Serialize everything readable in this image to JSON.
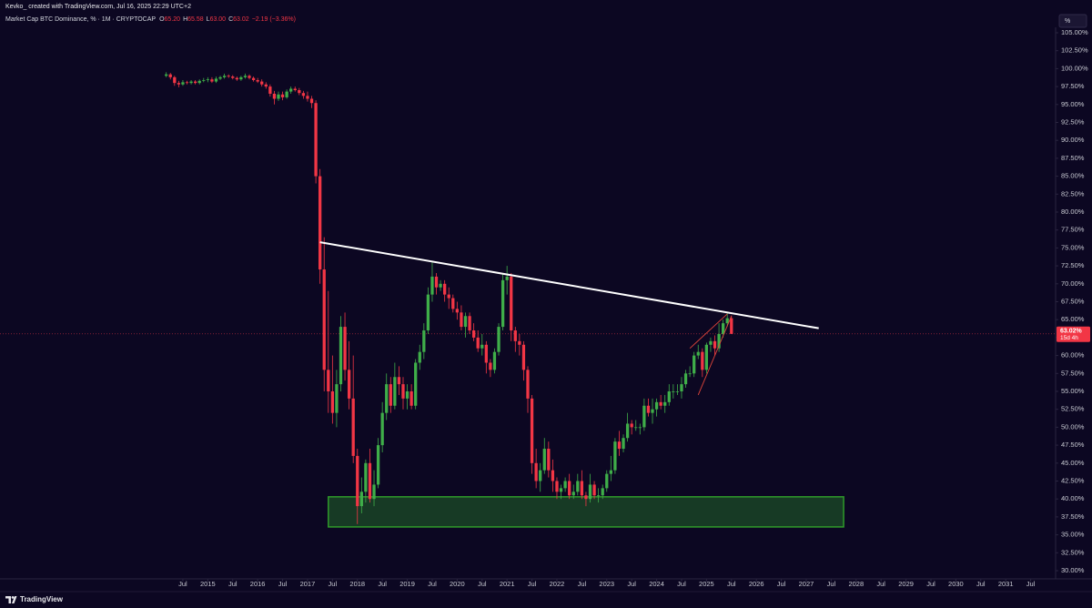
{
  "header": "Kevko_ created with TradingView.com, Jul 16, 2025 22:29 UTC+2",
  "branding": "TradingView",
  "scale_button": "%",
  "chart_data": {
    "type": "candlestick",
    "title": "Market Cap BTC Dominance, % · 1M · CRYPTOCAP",
    "legend_items": [
      {
        "key": "O",
        "text": "65.20"
      },
      {
        "key": "H",
        "text": "65.58"
      },
      {
        "key": "L",
        "text": "63.00"
      },
      {
        "key": "C",
        "text": "63.02"
      }
    ],
    "change": "−2.19 (−3.36%)",
    "up_color": "#3fae49",
    "down_color": "#f23645",
    "grid": false,
    "x": [
      "2014-03",
      "2014-04",
      "2014-05",
      "2014-06",
      "2014-07",
      "2014-08",
      "2014-09",
      "2014-10",
      "2014-11",
      "2014-12",
      "2015-01",
      "2015-02",
      "2015-03",
      "2015-04",
      "2015-05",
      "2015-06",
      "2015-07",
      "2015-08",
      "2015-09",
      "2015-10",
      "2015-11",
      "2015-12",
      "2016-01",
      "2016-02",
      "2016-03",
      "2016-04",
      "2016-05",
      "2016-06",
      "2016-07",
      "2016-08",
      "2016-09",
      "2016-10",
      "2016-11",
      "2016-12",
      "2017-01",
      "2017-02",
      "2017-03",
      "2017-04",
      "2017-05",
      "2017-06",
      "2017-07",
      "2017-08",
      "2017-09",
      "2017-10",
      "2017-11",
      "2017-12",
      "2018-01",
      "2018-02",
      "2018-03",
      "2018-04",
      "2018-05",
      "2018-06",
      "2018-07",
      "2018-08",
      "2018-09",
      "2018-10",
      "2018-11",
      "2018-12",
      "2019-01",
      "2019-02",
      "2019-03",
      "2019-04",
      "2019-05",
      "2019-06",
      "2019-07",
      "2019-08",
      "2019-09",
      "2019-10",
      "2019-11",
      "2019-12",
      "2020-01",
      "2020-02",
      "2020-03",
      "2020-04",
      "2020-05",
      "2020-06",
      "2020-07",
      "2020-08",
      "2020-09",
      "2020-10",
      "2020-11",
      "2020-12",
      "2021-01",
      "2021-02",
      "2021-03",
      "2021-04",
      "2021-05",
      "2021-06",
      "2021-07",
      "2021-08",
      "2021-09",
      "2021-10",
      "2021-11",
      "2021-12",
      "2022-01",
      "2022-02",
      "2022-03",
      "2022-04",
      "2022-05",
      "2022-06",
      "2022-07",
      "2022-08",
      "2022-09",
      "2022-10",
      "2022-11",
      "2022-12",
      "2023-01",
      "2023-02",
      "2023-03",
      "2023-04",
      "2023-05",
      "2023-06",
      "2023-07",
      "2023-08",
      "2023-09",
      "2023-10",
      "2023-11",
      "2023-12",
      "2024-01",
      "2024-02",
      "2024-03",
      "2024-04",
      "2024-05",
      "2024-06",
      "2024-07",
      "2024-08",
      "2024-09",
      "2024-10",
      "2024-11",
      "2024-12",
      "2025-01",
      "2025-02",
      "2025-03",
      "2025-04",
      "2025-05",
      "2025-06",
      "2025-07"
    ],
    "open": [
      99.0,
      99.2,
      98.8,
      98.0,
      97.8,
      98.1,
      98.0,
      98.2,
      98.0,
      98.3,
      98.4,
      98.5,
      98.2,
      98.6,
      98.8,
      99.0,
      98.9,
      98.7,
      98.5,
      98.8,
      99.0,
      98.7,
      98.4,
      98.2,
      97.8,
      97.5,
      96.5,
      95.8,
      96.4,
      96.0,
      96.8,
      97.2,
      97.0,
      96.6,
      96.2,
      95.8,
      95.2,
      85.0,
      72.0,
      58.0,
      55.0,
      52.0,
      56.0,
      64.0,
      58.0,
      54.0,
      46.0,
      39.0,
      41.0,
      45.0,
      40.0,
      42.0,
      47.5,
      52.0,
      56.0,
      53.0,
      57.0,
      56.0,
      54.0,
      55.0,
      53.0,
      59.0,
      60.5,
      63.5,
      68.5,
      71.0,
      69.5,
      70.0,
      68.5,
      68.0,
      66.5,
      66.0,
      64.0,
      65.5,
      63.5,
      62.5,
      61.0,
      61.5,
      59.0,
      58.0,
      60.5,
      64.0,
      70.5,
      71.0,
      63.5,
      62.0,
      61.5,
      58.0,
      54.0,
      45.0,
      42.5,
      44.0,
      47.0,
      44.0,
      42.5,
      41.0,
      41.5,
      42.5,
      40.5,
      41.0,
      42.5,
      40.5,
      40.0,
      42.0,
      40.5,
      40.5,
      41.5,
      43.5,
      44.0,
      48.0,
      47.0,
      48.5,
      50.5,
      50.0,
      50.0,
      50.0,
      53.0,
      52.0,
      52.5,
      53.5,
      53.0,
      53.5,
      55.0,
      55.0,
      55.0,
      56.0,
      57.5,
      57.5,
      60.0,
      60.5,
      58.0,
      61.5,
      62.0,
      61.0,
      63.0,
      64.5,
      65.2
    ],
    "high": [
      99.5,
      99.4,
      99.0,
      98.3,
      98.4,
      98.3,
      98.4,
      98.4,
      98.5,
      98.7,
      98.8,
      98.8,
      98.9,
      99.0,
      99.3,
      99.2,
      99.1,
      98.9,
      99.0,
      99.3,
      99.2,
      98.9,
      98.7,
      98.5,
      98.1,
      97.8,
      96.9,
      96.8,
      96.8,
      97.1,
      97.5,
      97.5,
      97.3,
      96.9,
      96.8,
      96.2,
      95.6,
      86.0,
      76.5,
      69.0,
      60.0,
      58.0,
      65.5,
      66.0,
      62.0,
      60.0,
      47.0,
      43.0,
      45.5,
      47.0,
      44.0,
      48.5,
      53.5,
      57.5,
      57.0,
      59.0,
      58.5,
      57.0,
      56.0,
      56.0,
      59.5,
      61.5,
      64.5,
      69.5,
      73.0,
      71.5,
      70.5,
      70.5,
      69.5,
      68.5,
      67.5,
      67.0,
      66.0,
      66.0,
      64.5,
      63.5,
      63.0,
      62.0,
      59.5,
      61.0,
      64.5,
      71.5,
      72.5,
      71.5,
      64.0,
      63.0,
      62.0,
      58.5,
      54.5,
      47.0,
      45.0,
      48.5,
      48.0,
      45.5,
      43.0,
      42.0,
      43.0,
      43.5,
      42.0,
      43.5,
      44.0,
      41.0,
      43.5,
      42.5,
      41.5,
      42.0,
      44.0,
      46.0,
      48.5,
      49.5,
      49.0,
      52.0,
      51.0,
      51.0,
      50.5,
      54.0,
      54.0,
      54.0,
      54.0,
      54.5,
      54.5,
      56.0,
      56.0,
      56.0,
      57.0,
      58.0,
      58.5,
      60.5,
      61.5,
      61.0,
      61.8,
      62.5,
      62.8,
      64.5,
      65.0,
      66.0,
      65.58
    ],
    "low": [
      98.8,
      98.5,
      97.6,
      97.4,
      97.6,
      97.8,
      97.8,
      97.8,
      97.8,
      98.1,
      98.1,
      98.0,
      98.0,
      98.4,
      98.6,
      98.7,
      98.5,
      98.3,
      98.3,
      98.6,
      98.5,
      98.2,
      98.0,
      97.5,
      97.2,
      96.1,
      95.0,
      95.5,
      95.6,
      95.8,
      96.5,
      96.8,
      96.3,
      95.8,
      95.4,
      94.5,
      84.0,
      70.0,
      55.0,
      52.0,
      50.5,
      50.0,
      55.0,
      56.5,
      52.5,
      45.0,
      36.5,
      38.0,
      39.5,
      39.5,
      39.0,
      41.5,
      46.5,
      51.0,
      52.0,
      52.5,
      54.5,
      52.5,
      52.5,
      52.5,
      52.5,
      58.0,
      59.5,
      63.0,
      67.5,
      68.5,
      69.0,
      67.5,
      66.5,
      66.0,
      65.0,
      63.5,
      62.5,
      63.0,
      62.0,
      60.5,
      60.0,
      57.5,
      57.0,
      57.5,
      60.0,
      63.5,
      68.5,
      62.0,
      60.5,
      60.0,
      56.5,
      52.0,
      43.5,
      41.5,
      41.0,
      43.5,
      43.0,
      41.0,
      40.0,
      40.0,
      41.0,
      40.0,
      40.0,
      40.5,
      40.0,
      39.0,
      39.5,
      40.0,
      39.5,
      40.0,
      41.0,
      42.5,
      43.5,
      46.0,
      46.5,
      48.0,
      49.0,
      49.5,
      49.0,
      49.5,
      51.5,
      50.5,
      51.5,
      52.5,
      52.0,
      53.0,
      54.0,
      54.5,
      54.0,
      55.5,
      57.0,
      57.0,
      59.5,
      57.0,
      57.5,
      60.5,
      60.0,
      60.5,
      62.5,
      64.0,
      63.0
    ],
    "close": [
      99.2,
      98.8,
      98.0,
      97.8,
      98.1,
      98.0,
      98.2,
      98.0,
      98.3,
      98.4,
      98.5,
      98.2,
      98.6,
      98.8,
      99.0,
      98.9,
      98.7,
      98.5,
      98.8,
      99.0,
      98.7,
      98.4,
      98.2,
      97.8,
      97.5,
      96.5,
      95.8,
      96.4,
      96.0,
      96.8,
      97.2,
      97.0,
      96.6,
      96.2,
      95.8,
      95.2,
      85.0,
      72.0,
      58.0,
      55.0,
      52.0,
      56.0,
      64.0,
      58.0,
      54.0,
      46.0,
      39.0,
      41.0,
      45.0,
      40.0,
      42.0,
      47.5,
      52.0,
      56.0,
      53.0,
      57.0,
      56.0,
      54.0,
      55.0,
      53.0,
      59.0,
      60.5,
      63.5,
      68.5,
      71.0,
      69.5,
      70.0,
      68.5,
      68.0,
      66.5,
      66.0,
      64.0,
      65.5,
      63.5,
      62.5,
      61.0,
      61.5,
      59.0,
      58.0,
      60.5,
      64.0,
      70.5,
      71.0,
      63.5,
      62.0,
      61.5,
      58.0,
      54.0,
      45.0,
      42.5,
      44.0,
      47.0,
      44.0,
      42.5,
      41.0,
      41.5,
      42.5,
      40.5,
      41.0,
      42.5,
      40.5,
      40.0,
      42.0,
      40.5,
      40.5,
      41.5,
      43.5,
      44.0,
      48.0,
      47.0,
      48.5,
      50.5,
      50.0,
      50.0,
      50.0,
      53.0,
      52.0,
      52.5,
      53.5,
      53.0,
      53.5,
      55.0,
      55.0,
      55.0,
      56.0,
      57.5,
      57.5,
      60.0,
      60.5,
      58.0,
      61.5,
      62.0,
      61.0,
      63.0,
      64.5,
      65.2,
      63.02
    ],
    "xlim": [
      "2010-11",
      "2032-01"
    ],
    "xticks": [
      {
        "value": "2014-07",
        "label": "Jul"
      },
      {
        "value": "2015-01",
        "label": "2015"
      },
      {
        "value": "2015-07",
        "label": "Jul"
      },
      {
        "value": "2016-01",
        "label": "2016"
      },
      {
        "value": "2016-07",
        "label": "Jul"
      },
      {
        "value": "2017-01",
        "label": "2017"
      },
      {
        "value": "2017-07",
        "label": "Jul"
      },
      {
        "value": "2018-01",
        "label": "2018"
      },
      {
        "value": "2018-07",
        "label": "Jul"
      },
      {
        "value": "2019-01",
        "label": "2019"
      },
      {
        "value": "2019-07",
        "label": "Jul"
      },
      {
        "value": "2020-01",
        "label": "2020"
      },
      {
        "value": "2020-07",
        "label": "Jul"
      },
      {
        "value": "2021-01",
        "label": "2021"
      },
      {
        "value": "2021-07",
        "label": "Jul"
      },
      {
        "value": "2022-01",
        "label": "2022"
      },
      {
        "value": "2022-07",
        "label": "Jul"
      },
      {
        "value": "2023-01",
        "label": "2023"
      },
      {
        "value": "2023-07",
        "label": "Jul"
      },
      {
        "value": "2024-01",
        "label": "2024"
      },
      {
        "value": "2024-07",
        "label": "Jul"
      },
      {
        "value": "2025-01",
        "label": "2025"
      },
      {
        "value": "2025-07",
        "label": "Jul"
      },
      {
        "value": "2026-01",
        "label": "2026"
      },
      {
        "value": "2026-07",
        "label": "Jul"
      },
      {
        "value": "2027-01",
        "label": "2027"
      },
      {
        "value": "2027-07",
        "label": "Jul"
      },
      {
        "value": "2028-01",
        "label": "2028"
      },
      {
        "value": "2028-07",
        "label": "Jul"
      },
      {
        "value": "2029-01",
        "label": "2029"
      },
      {
        "value": "2029-07",
        "label": "Jul"
      },
      {
        "value": "2030-01",
        "label": "2030"
      },
      {
        "value": "2030-07",
        "label": "Jul"
      },
      {
        "value": "2031-01",
        "label": "2031"
      },
      {
        "value": "2031-07",
        "label": "Jul"
      }
    ],
    "ylim": [
      30,
      105
    ],
    "yticks": [
      {
        "value": 30,
        "label": "30.00%"
      },
      {
        "value": 32.5,
        "label": "32.50%"
      },
      {
        "value": 35,
        "label": "35.00%"
      },
      {
        "value": 37.5,
        "label": "37.50%"
      },
      {
        "value": 40,
        "label": "40.00%"
      },
      {
        "value": 42.5,
        "label": "42.50%"
      },
      {
        "value": 45,
        "label": "45.00%"
      },
      {
        "value": 47.5,
        "label": "47.50%"
      },
      {
        "value": 50,
        "label": "50.00%"
      },
      {
        "value": 52.5,
        "label": "52.50%"
      },
      {
        "value": 55,
        "label": "55.00%"
      },
      {
        "value": 57.5,
        "label": "57.50%"
      },
      {
        "value": 60,
        "label": "60.00%"
      },
      {
        "value": 62.5,
        "label": "62.50%"
      },
      {
        "value": 65,
        "label": "65.00%"
      },
      {
        "value": 67.5,
        "label": "67.50%"
      },
      {
        "value": 70,
        "label": "70.00%"
      },
      {
        "value": 72.5,
        "label": "72.50%"
      },
      {
        "value": 75,
        "label": "75.00%"
      },
      {
        "value": 77.5,
        "label": "77.50%"
      },
      {
        "value": 80,
        "label": "80.00%"
      },
      {
        "value": 82.5,
        "label": "82.50%"
      },
      {
        "value": 85,
        "label": "85.00%"
      },
      {
        "value": 87.5,
        "label": "87.50%"
      },
      {
        "value": 90,
        "label": "90.00%"
      },
      {
        "value": 92.5,
        "label": "92.50%"
      },
      {
        "value": 95,
        "label": "95.00%"
      },
      {
        "value": 97.5,
        "label": "97.50%"
      },
      {
        "value": 100,
        "label": "100.00%"
      },
      {
        "value": 102.5,
        "label": "102.50%"
      },
      {
        "value": 105,
        "label": "105.00%"
      }
    ],
    "price_label": {
      "value": 63.02,
      "label": "63.02%",
      "countdown": "15d 4h"
    },
    "trendline": {
      "x": [
        "2017-04",
        "2027-04"
      ],
      "y": [
        75.8,
        63.8
      ],
      "color": "#ffffff"
    },
    "zone": {
      "x": [
        "2017-06",
        "2027-10"
      ],
      "y": [
        36.1,
        40.3
      ],
      "color": "#2f9a2a"
    },
    "wedge": [
      {
        "x": [
          "2024-09",
          "2025-06"
        ],
        "y": [
          61.0,
          65.8
        ],
        "color": "#e0453a"
      },
      {
        "x": [
          "2024-11",
          "2025-07"
        ],
        "y": [
          54.5,
          65.5
        ],
        "color": "#e0453a"
      }
    ]
  }
}
